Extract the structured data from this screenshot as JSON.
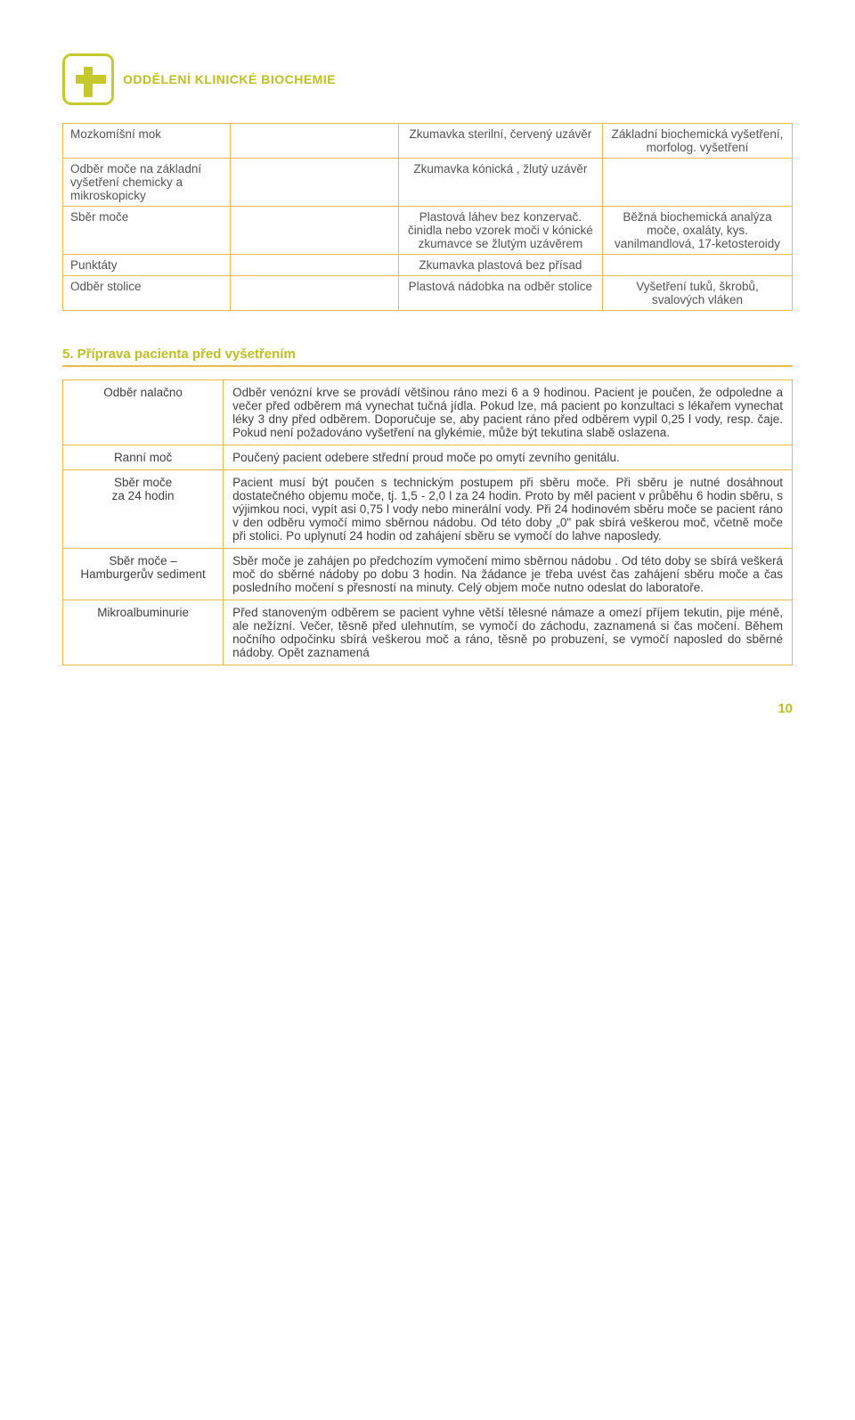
{
  "logo": {
    "text": "ODDĚLENÍ KLINICKÉ BIOCHEMIE"
  },
  "table1": {
    "rows": [
      {
        "c1": "Mozkomíšní mok",
        "c2": "",
        "c3": "Zkumavka sterilní, červený uzávěr",
        "c4": "Základní biochemická vyšetření, morfolog. vyšetření"
      },
      {
        "c1": "Odběr moče na základní vyšetření chemicky a mikroskopicky",
        "c2": "",
        "c3": "Zkumavka kónická , žlutý uzávěr",
        "c4": ""
      },
      {
        "c1": "Sběr moče",
        "c2": "",
        "c3": "Plastová láhev bez konzervač. činidla nebo vzorek moči v kónické zkumavce se žlutým uzávěrem",
        "c4": "Běžná biochemická analýza moče, oxaláty, kys. vanilmandlová, 17-ketosteroidy"
      },
      {
        "c1": "Punktáty",
        "c2": "",
        "c3": "Zkumavka plastová bez přísad",
        "c4": ""
      },
      {
        "c1": "Odběr stolice",
        "c2": "",
        "c3": "Plastová nádobka na odběr stolice",
        "c4": "Vyšetření tuků, škrobů, svalových vláken"
      }
    ]
  },
  "section5": {
    "heading": "5. Příprava pacienta před vyšetřením",
    "rows": [
      {
        "label": "Odběr nalačno",
        "desc": "Odběr venózní krve se provádí většinou ráno mezi 6 a 9 hodinou. Pacient je poučen, že odpoledne a večer před odběrem má vynechat tučná jídla. Pokud lze, má pacient po konzultaci s lékařem vynechat léky 3 dny před odběrem. Doporučuje se, aby pacient ráno před odběrem vypil 0,25 l vody, resp. čaje. Pokud není požadováno vyšetření na glykémie, může být tekutina slabě oslazena."
      },
      {
        "label": "Ranní moč",
        "desc": "Poučený pacient odebere střední proud moče po omytí zevního genitálu."
      },
      {
        "label": "Sběr moče\nza 24 hodin",
        "desc": "Pacient musí být poučen s technickým postupem při sběru moče. Při sběru je nutné dosáhnout dostatečného objemu moče, tj. 1,5 - 2,0 l za 24 hodin. Proto by měl pacient v průběhu 6 hodin sběru, s výjimkou noci, vypít asi 0,75 l vody nebo minerální vody. Při 24 hodinovém sběru moče se pacient ráno v den odběru vymočí mimo sběrnou nádobu. Od této doby „0\" pak sbírá veškerou moč, včetně moče při stolici. Po uplynutí 24 hodin od zahájení sběru se vymočí do lahve naposledy."
      },
      {
        "label": "Sběr moče – Hamburgerův sediment",
        "desc": "Sběr moče je zahájen po předchozím vymočení mimo sběrnou nádobu . Od této doby se sbírá veškerá moč do sběrné nádoby po dobu 3 hodin. Na žádance je třeba uvést čas zahájení sběru moče a čas posledního močení s přesností na minuty. Celý objem moče nutno odeslat do laboratoře."
      },
      {
        "label": "Mikroalbuminurie",
        "desc": "Před stanoveným odběrem se pacient vyhne větší tělesné námaze a omezí příjem tekutin, pije méně, ale nežízní. Večer, těsně před ulehnutím, se vymočí do záchodu, zaznamená si čas močení. Během nočního odpočinku sbírá veškerou moč a ráno, těsně po probuzení, se vymočí naposled do sběrné nádoby. Opět zaznamená"
      }
    ]
  },
  "page_number": "10"
}
